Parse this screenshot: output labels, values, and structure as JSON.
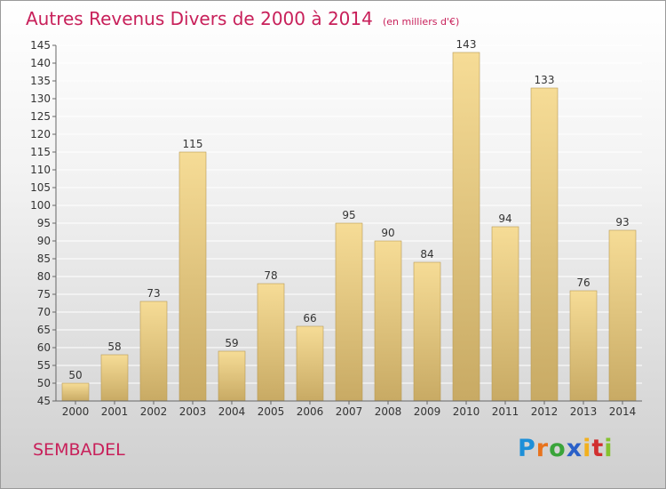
{
  "title": "Autres Revenus Divers de 2000 à 2014",
  "subtitle": "(en milliers d'€)",
  "commune": "SEMBADEL",
  "logo": {
    "text": "Proxiti",
    "letters": [
      "P",
      "r",
      "o",
      "x",
      "i",
      "t",
      "i"
    ]
  },
  "colors": {
    "title": "#c8205a",
    "bar_light": "#f6dc96",
    "bar_dark": "#c8aa64",
    "axis": "#666666",
    "grid": "#ffffff"
  },
  "chart_data": {
    "type": "bar",
    "categories": [
      "2000",
      "2001",
      "2002",
      "2003",
      "2004",
      "2005",
      "2006",
      "2007",
      "2008",
      "2009",
      "2010",
      "2011",
      "2012",
      "2013",
      "2014"
    ],
    "values": [
      50,
      58,
      73,
      115,
      59,
      78,
      66,
      95,
      90,
      84,
      143,
      94,
      133,
      76,
      93
    ],
    "title": "Autres Revenus Divers de 2000 à 2014",
    "subtitle": "(en milliers d'€)",
    "ylim": [
      45,
      145
    ],
    "yticks": [
      45,
      50,
      55,
      60,
      65,
      70,
      75,
      80,
      85,
      90,
      95,
      100,
      105,
      110,
      115,
      120,
      125,
      130,
      135,
      140,
      145
    ],
    "grid": true,
    "data_labels": true
  }
}
